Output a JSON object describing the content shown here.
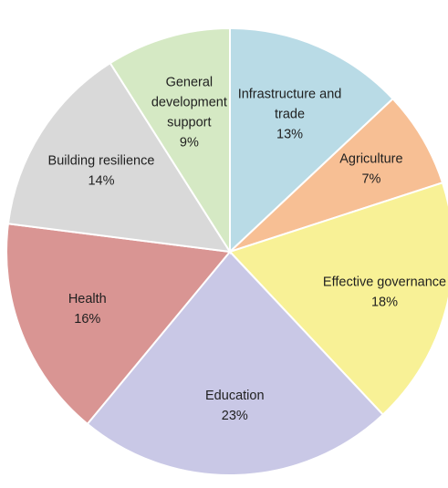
{
  "chart_data": {
    "type": "pie",
    "title": "",
    "start": "12 o'clock",
    "direction": "clockwise",
    "slices": [
      {
        "label_lines": [
          "Infrastructure and",
          "trade"
        ],
        "value_label": "13%",
        "value": 13,
        "color": "#b9dbe6"
      },
      {
        "label_lines": [
          "Agriculture"
        ],
        "value_label": "7%",
        "value": 7,
        "color": "#f7bf94"
      },
      {
        "label_lines": [
          "Effective governance"
        ],
        "value_label": "18%",
        "value": 18,
        "color": "#f8f196"
      },
      {
        "label_lines": [
          "Education"
        ],
        "value_label": "23%",
        "value": 23,
        "color": "#c9c8e6"
      },
      {
        "label_lines": [
          "Health"
        ],
        "value_label": "16%",
        "value": 16,
        "color": "#d99593"
      },
      {
        "label_lines": [
          "Building resilience"
        ],
        "value_label": "14%",
        "value": 14,
        "color": "#d9d9d9"
      },
      {
        "label_lines": [
          "General",
          "development",
          "support"
        ],
        "value_label": "9%",
        "value": 9,
        "color": "#d5e9c4"
      }
    ]
  }
}
